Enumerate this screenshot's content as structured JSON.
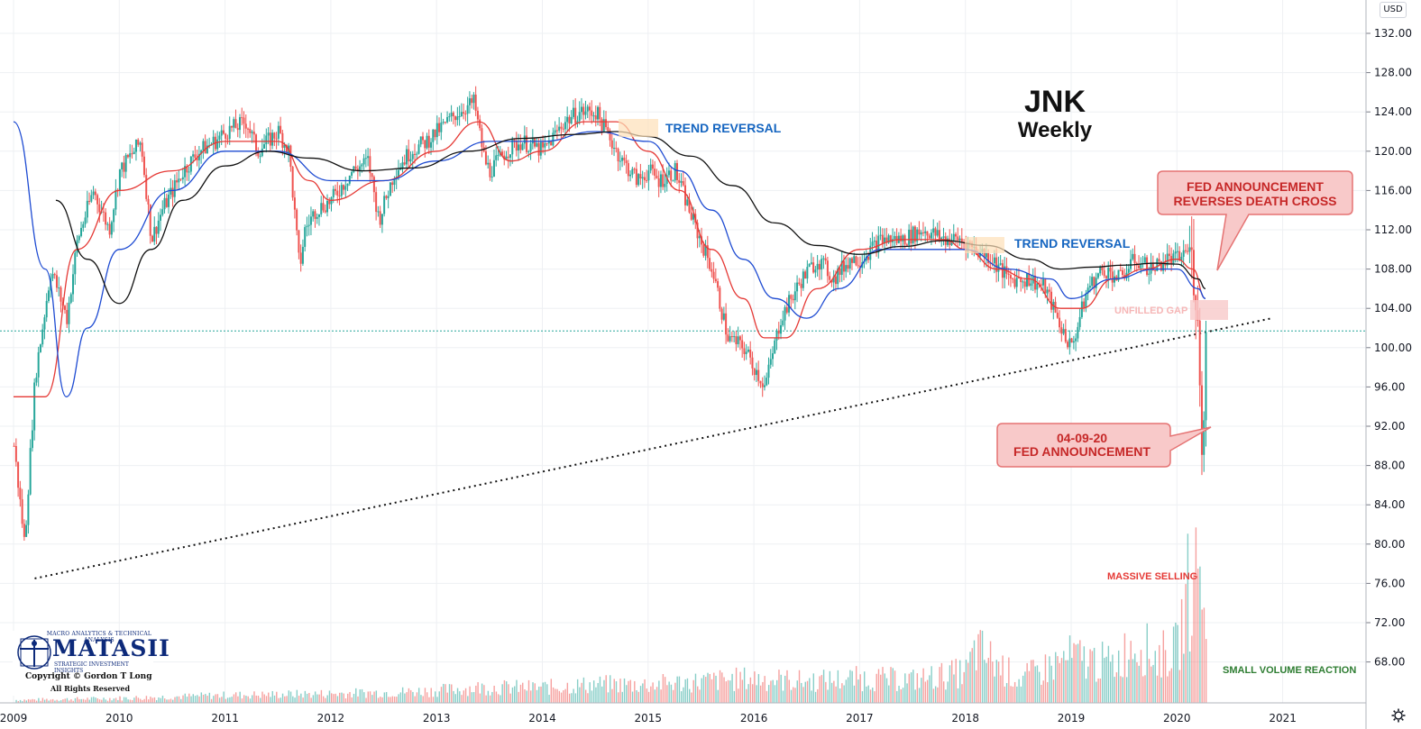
{
  "title": {
    "ticker": "JNK",
    "interval": "Weekly"
  },
  "currency_label": "USD",
  "annotations": {
    "trend_reversal_1": "TREND REVERSAL",
    "trend_reversal_2": "TREND REVERSAL",
    "fed_reverses_line1": "FED ANNOUNCEMENT",
    "fed_reverses_line2": "REVERSES DEATH CROSS",
    "fed_date_line1": "04-09-20",
    "fed_date_line2": "FED ANNOUNCEMENT",
    "unfilled_gap": "UNFILLED GAP",
    "massive_selling": "MASSIVE SELLING",
    "small_volume": "SMALL VOLUME REACTION"
  },
  "logo": {
    "tagline": "MACRO ANALYTICS & TECHNICAL ANALYSIS",
    "name": "MATASII",
    "subtitle": "STRATEGIC INVESTMENT INSIGHTS",
    "copyright": "Copyright © Gordon T Long",
    "rights": "All Rights Reserved"
  },
  "colors": {
    "up": "#26a69a",
    "down": "#ef5350",
    "ema_fast": "#e53935",
    "ma_mid": "#1e4bd2",
    "ma_slow": "#111111",
    "support_line": "#26a69a",
    "callout_fill": "#f8c9c9",
    "callout_stroke": "#e57373",
    "trend_text": "#1565c0"
  },
  "chart_data": {
    "type": "line",
    "title": "JNK",
    "subtitle": "Weekly",
    "x_ticks": [
      "2009",
      "2010",
      "2011",
      "2012",
      "2013",
      "2014",
      "2015",
      "2016",
      "2017",
      "2018",
      "2019",
      "2020",
      "2021"
    ],
    "y_ticks": [
      "132.00",
      "128.00",
      "124.00",
      "120.00",
      "116.00",
      "112.00",
      "108.00",
      "104.00",
      "100.00",
      "96.00",
      "92.00",
      "88.00",
      "84.00",
      "80.00",
      "76.00",
      "72.00",
      "68.00"
    ],
    "ylim": [
      64.5,
      133.5
    ],
    "xlim": [
      2009.0,
      2021.7
    ],
    "series": [
      {
        "style": "price-candles",
        "x": [
          2009.0,
          2009.1,
          2009.2,
          2009.35,
          2009.5,
          2009.6,
          2009.75,
          2009.9,
          2010.0,
          2010.2,
          2010.3,
          2010.4,
          2010.6,
          2010.75,
          2010.9,
          2011.0,
          2011.2,
          2011.3,
          2011.5,
          2011.6,
          2011.7,
          2011.75,
          2011.85,
          2012.0,
          2012.2,
          2012.35,
          2012.45,
          2012.6,
          2012.75,
          2012.9,
          2013.0,
          2013.2,
          2013.35,
          2013.45,
          2013.5,
          2013.65,
          2013.8,
          2014.0,
          2014.2,
          2014.35,
          2014.5,
          2014.6,
          2014.75,
          2014.9,
          2015.0,
          2015.1,
          2015.25,
          2015.45,
          2015.6,
          2015.75,
          2015.9,
          2016.0,
          2016.1,
          2016.25,
          2016.45,
          2016.6,
          2016.75,
          2016.9,
          2017.0,
          2017.2,
          2017.4,
          2017.6,
          2017.8,
          2017.95,
          2018.1,
          2018.25,
          2018.4,
          2018.6,
          2018.75,
          2018.9,
          2019.0,
          2019.15,
          2019.3,
          2019.45,
          2019.6,
          2019.75,
          2019.9,
          2020.0,
          2020.1,
          2020.15,
          2020.2,
          2020.22,
          2020.25,
          2020.27
        ],
        "close": [
          90,
          80,
          97,
          108,
          103,
          111,
          116,
          112,
          118,
          121,
          111,
          114,
          118,
          120,
          121,
          122,
          123,
          120,
          122,
          120,
          108,
          112,
          114,
          115,
          118,
          119,
          113,
          118,
          120,
          121,
          122,
          124,
          125,
          119,
          118,
          120,
          121,
          120,
          123,
          124,
          124,
          122,
          119,
          117,
          118,
          117,
          118,
          112,
          108,
          101,
          100,
          98,
          96,
          103,
          107,
          109,
          107,
          109,
          109,
          111,
          111,
          112,
          111,
          111,
          110,
          109,
          107,
          107,
          106,
          102,
          100,
          106,
          108,
          107,
          109,
          108,
          109,
          109,
          110,
          108,
          104,
          88,
          95,
          101
        ]
      },
      {
        "name": "EMA fast",
        "style": "ma-red",
        "x": [
          2009.0,
          2009.3,
          2009.6,
          2010.0,
          2010.5,
          2011.0,
          2011.5,
          2011.8,
          2012.0,
          2012.5,
          2013.0,
          2013.4,
          2013.7,
          2014.0,
          2014.4,
          2014.7,
          2015.0,
          2015.3,
          2015.6,
          2015.9,
          2016.1,
          2016.3,
          2016.6,
          2017.0,
          2017.4,
          2017.8,
          2018.0,
          2018.3,
          2018.6,
          2018.9,
          2019.1,
          2019.4,
          2019.7,
          2020.0,
          2020.15,
          2020.27
        ],
        "values": [
          95,
          95,
          110,
          116,
          118,
          121,
          121,
          117,
          115,
          117,
          120,
          123,
          119,
          120,
          123,
          123,
          120,
          116,
          110,
          105,
          101,
          101,
          106,
          110,
          111,
          111,
          110,
          108,
          107,
          104,
          104,
          107,
          108,
          109,
          108,
          105
        ]
      },
      {
        "name": "MA mid",
        "style": "ma-blue",
        "x": [
          2009.0,
          2009.3,
          2009.5,
          2009.7,
          2010.0,
          2010.5,
          2011.0,
          2011.5,
          2012.0,
          2012.5,
          2013.0,
          2013.5,
          2014.0,
          2014.5,
          2015.0,
          2015.3,
          2015.6,
          2015.9,
          2016.2,
          2016.5,
          2016.8,
          2017.2,
          2017.6,
          2018.0,
          2018.4,
          2018.8,
          2019.0,
          2019.4,
          2019.8,
          2020.0,
          2020.2,
          2020.27
        ],
        "values": [
          123,
          108,
          95,
          102,
          110,
          116,
          120,
          120,
          117,
          117,
          119,
          121,
          121,
          122,
          121,
          118,
          114,
          109,
          105,
          103,
          106,
          110,
          110,
          110,
          108,
          107,
          105,
          107,
          108,
          108,
          106,
          105
        ]
      },
      {
        "name": "MA slow",
        "style": "ma-black",
        "x": [
          2009.4,
          2009.7,
          2010.0,
          2010.3,
          2010.6,
          2011.0,
          2011.4,
          2011.8,
          2012.3,
          2012.8,
          2013.3,
          2013.8,
          2014.3,
          2014.7,
          2015.0,
          2015.4,
          2015.8,
          2016.2,
          2016.6,
          2017.0,
          2017.4,
          2017.8,
          2018.2,
          2018.6,
          2018.9,
          2019.2,
          2019.5,
          2019.8,
          2020.0,
          2020.2,
          2020.27
        ],
        "values": [
          115,
          109,
          104.5,
          110,
          115,
          118.5,
          120,
          119.3,
          118,
          118.3,
          120,
          121.3,
          121.7,
          122,
          121.5,
          119.5,
          116.5,
          112.7,
          110.4,
          109.5,
          110.3,
          110.9,
          110.4,
          109,
          108,
          108.2,
          108.4,
          108.6,
          108.5,
          107,
          106
        ]
      },
      {
        "name": "Support trendline",
        "style": "dotted",
        "x": [
          2009.2,
          2020.9
        ],
        "values": [
          76.5,
          103.0
        ]
      },
      {
        "name": "Support level",
        "style": "dotted-horizontal",
        "x": [
          2009.0,
          2021.7
        ],
        "values": [
          101.7,
          101.7
        ]
      }
    ],
    "volume": {
      "x": [
        2009.1,
        2010.0,
        2011.0,
        2012.0,
        2012.6,
        2013.0,
        2013.4,
        2014.0,
        2014.5,
        2015.0,
        2015.5,
        2016.0,
        2016.5,
        2017.0,
        2017.5,
        2018.0,
        2018.1,
        2018.5,
        2019.0,
        2019.4,
        2019.6,
        2019.8,
        2020.0,
        2020.1,
        2020.2
      ],
      "relative_height": [
        0.02,
        0.03,
        0.05,
        0.06,
        0.07,
        0.08,
        0.1,
        0.1,
        0.12,
        0.12,
        0.14,
        0.16,
        0.14,
        0.16,
        0.15,
        0.2,
        0.35,
        0.15,
        0.3,
        0.25,
        0.4,
        0.3,
        0.35,
        0.75,
        0.5
      ]
    }
  }
}
